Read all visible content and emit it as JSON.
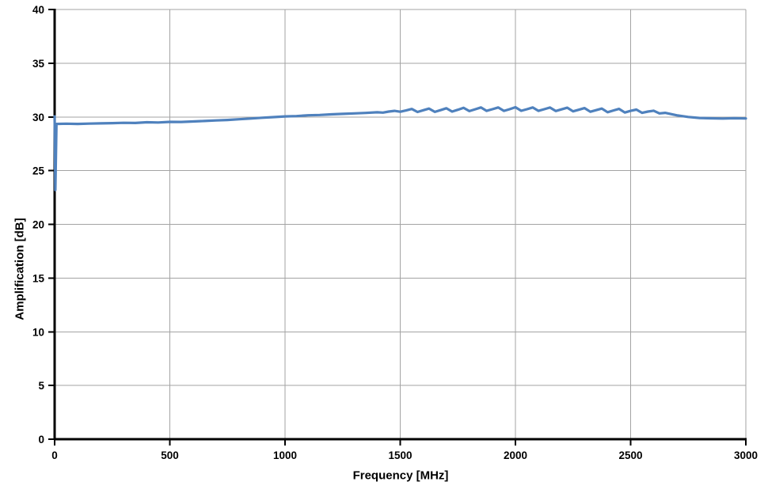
{
  "chart_data": {
    "type": "line",
    "title": "",
    "xlabel": "Frequency [MHz]",
    "ylabel": "Amplification [dB]",
    "xlim": [
      0,
      3000
    ],
    "ylim": [
      0,
      40
    ],
    "xticks": [
      0,
      500,
      1000,
      1500,
      2000,
      2500,
      3000
    ],
    "yticks": [
      0,
      5,
      10,
      15,
      20,
      25,
      30,
      35,
      40
    ],
    "grid": true,
    "legend_position": "none",
    "series": [
      {
        "name": "Amplification",
        "color": "#4F81BD",
        "points": [
          [
            0,
            30.05
          ],
          [
            3,
            23.2
          ],
          [
            8,
            29.35
          ],
          [
            50,
            29.37
          ],
          [
            100,
            29.35
          ],
          [
            150,
            29.38
          ],
          [
            200,
            29.4
          ],
          [
            250,
            29.42
          ],
          [
            300,
            29.45
          ],
          [
            350,
            29.44
          ],
          [
            400,
            29.5
          ],
          [
            450,
            29.48
          ],
          [
            500,
            29.54
          ],
          [
            550,
            29.53
          ],
          [
            600,
            29.58
          ],
          [
            650,
            29.62
          ],
          [
            700,
            29.67
          ],
          [
            750,
            29.72
          ],
          [
            800,
            29.78
          ],
          [
            850,
            29.85
          ],
          [
            900,
            29.92
          ],
          [
            950,
            29.98
          ],
          [
            1000,
            30.05
          ],
          [
            1050,
            30.08
          ],
          [
            1100,
            30.15
          ],
          [
            1150,
            30.18
          ],
          [
            1200,
            30.24
          ],
          [
            1250,
            30.28
          ],
          [
            1300,
            30.33
          ],
          [
            1350,
            30.37
          ],
          [
            1400,
            30.43
          ],
          [
            1425,
            30.4
          ],
          [
            1450,
            30.5
          ],
          [
            1475,
            30.56
          ],
          [
            1500,
            30.48
          ],
          [
            1525,
            30.6
          ],
          [
            1550,
            30.74
          ],
          [
            1575,
            30.46
          ],
          [
            1600,
            30.62
          ],
          [
            1625,
            30.78
          ],
          [
            1650,
            30.47
          ],
          [
            1675,
            30.63
          ],
          [
            1700,
            30.81
          ],
          [
            1725,
            30.5
          ],
          [
            1750,
            30.67
          ],
          [
            1775,
            30.85
          ],
          [
            1800,
            30.54
          ],
          [
            1825,
            30.71
          ],
          [
            1850,
            30.88
          ],
          [
            1875,
            30.56
          ],
          [
            1900,
            30.72
          ],
          [
            1925,
            30.88
          ],
          [
            1950,
            30.56
          ],
          [
            1975,
            30.72
          ],
          [
            2000,
            30.9
          ],
          [
            2025,
            30.57
          ],
          [
            2050,
            30.72
          ],
          [
            2075,
            30.88
          ],
          [
            2100,
            30.56
          ],
          [
            2125,
            30.72
          ],
          [
            2150,
            30.87
          ],
          [
            2175,
            30.55
          ],
          [
            2200,
            30.7
          ],
          [
            2225,
            30.86
          ],
          [
            2250,
            30.52
          ],
          [
            2275,
            30.67
          ],
          [
            2300,
            30.82
          ],
          [
            2325,
            30.48
          ],
          [
            2350,
            30.63
          ],
          [
            2375,
            30.78
          ],
          [
            2400,
            30.44
          ],
          [
            2425,
            30.6
          ],
          [
            2450,
            30.75
          ],
          [
            2475,
            30.41
          ],
          [
            2500,
            30.56
          ],
          [
            2525,
            30.68
          ],
          [
            2550,
            30.38
          ],
          [
            2575,
            30.5
          ],
          [
            2600,
            30.58
          ],
          [
            2625,
            30.33
          ],
          [
            2650,
            30.38
          ],
          [
            2700,
            30.15
          ],
          [
            2750,
            30.0
          ],
          [
            2800,
            29.9
          ],
          [
            2850,
            29.87
          ],
          [
            2900,
            29.85
          ],
          [
            2950,
            29.88
          ],
          [
            3000,
            29.86
          ]
        ]
      }
    ]
  },
  "colors": {
    "line": "#4F81BD",
    "grid": "#A3A3A3",
    "axis": "#000000",
    "background": "#FFFFFF",
    "text": "#000000"
  }
}
